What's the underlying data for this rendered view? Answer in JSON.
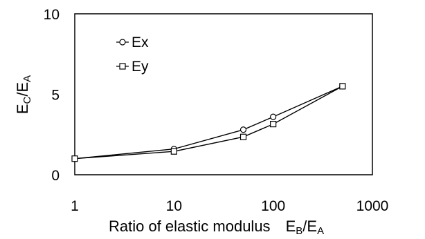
{
  "chart_data": {
    "type": "line",
    "x_scale": "log",
    "xlim": [
      1,
      1000
    ],
    "ylim": [
      0,
      10
    ],
    "x_ticks": [
      "1",
      "10",
      "100",
      "1000"
    ],
    "y_ticks": [
      "0",
      "5",
      "10"
    ],
    "grid": false,
    "legend_placement": "top-left",
    "xlabel": {
      "text": "Ratio of elastic modulus",
      "numerator_base": "E",
      "numerator_sub": "B",
      "slash": "/",
      "denominator_base": "E",
      "denominator_sub": "A"
    },
    "ylabel": {
      "base1": "E",
      "sub1": "C",
      "slash": "/",
      "base2": "E",
      "sub2": "A"
    },
    "series": [
      {
        "name": "Ex",
        "marker": "circle",
        "x": [
          1,
          10,
          50,
          100,
          500
        ],
        "y": [
          1.0,
          1.6,
          2.8,
          3.6,
          5.5
        ]
      },
      {
        "name": "Ey",
        "marker": "square",
        "x": [
          1,
          10,
          50,
          100,
          500
        ],
        "y": [
          1.0,
          1.45,
          2.35,
          3.15,
          5.5
        ]
      }
    ]
  }
}
